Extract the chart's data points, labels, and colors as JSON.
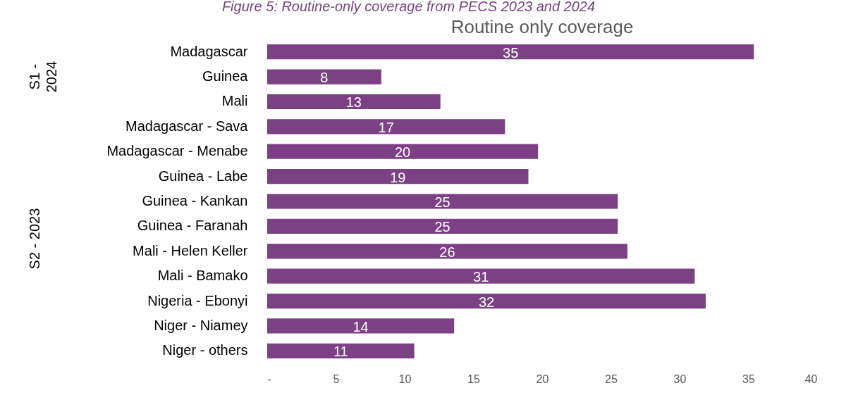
{
  "chart_data": {
    "type": "bar",
    "orientation": "horizontal",
    "title": "Routine only coverage",
    "annotations": [
      "Figure 5: Routine-only coverage from PECS 2023 and 2024",
      "S1 - 2024",
      "S2 - 2023"
    ],
    "categories": [
      "Madagascar",
      "Guinea",
      "Mali",
      "Madagascar - Sava",
      "Madagascar - Menabe",
      "Guinea - Labe",
      "Guinea - Kankan",
      "Guinea - Faranah",
      "Mali - Helen Keller",
      "Mali - Bamako",
      "Nigeria - Ebonyi",
      "Niger - Niamey",
      "Niger -  others"
    ],
    "values": [
      35.4,
      8.3,
      12.6,
      17.3,
      19.7,
      19,
      25.5,
      25.5,
      26.2,
      31.1,
      31.9,
      13.6,
      10.7
    ],
    "value_labels": [
      "35",
      "8",
      "13",
      "17",
      "20",
      "19",
      "25",
      "25",
      "26",
      "31",
      "32",
      "14",
      "11"
    ],
    "color": "#7b4184",
    "xlim": [
      0,
      40
    ],
    "xticks": [
      {
        "value": 0,
        "label": "-"
      },
      5,
      10,
      15,
      20,
      25,
      30,
      35,
      40
    ],
    "grid": false
  }
}
